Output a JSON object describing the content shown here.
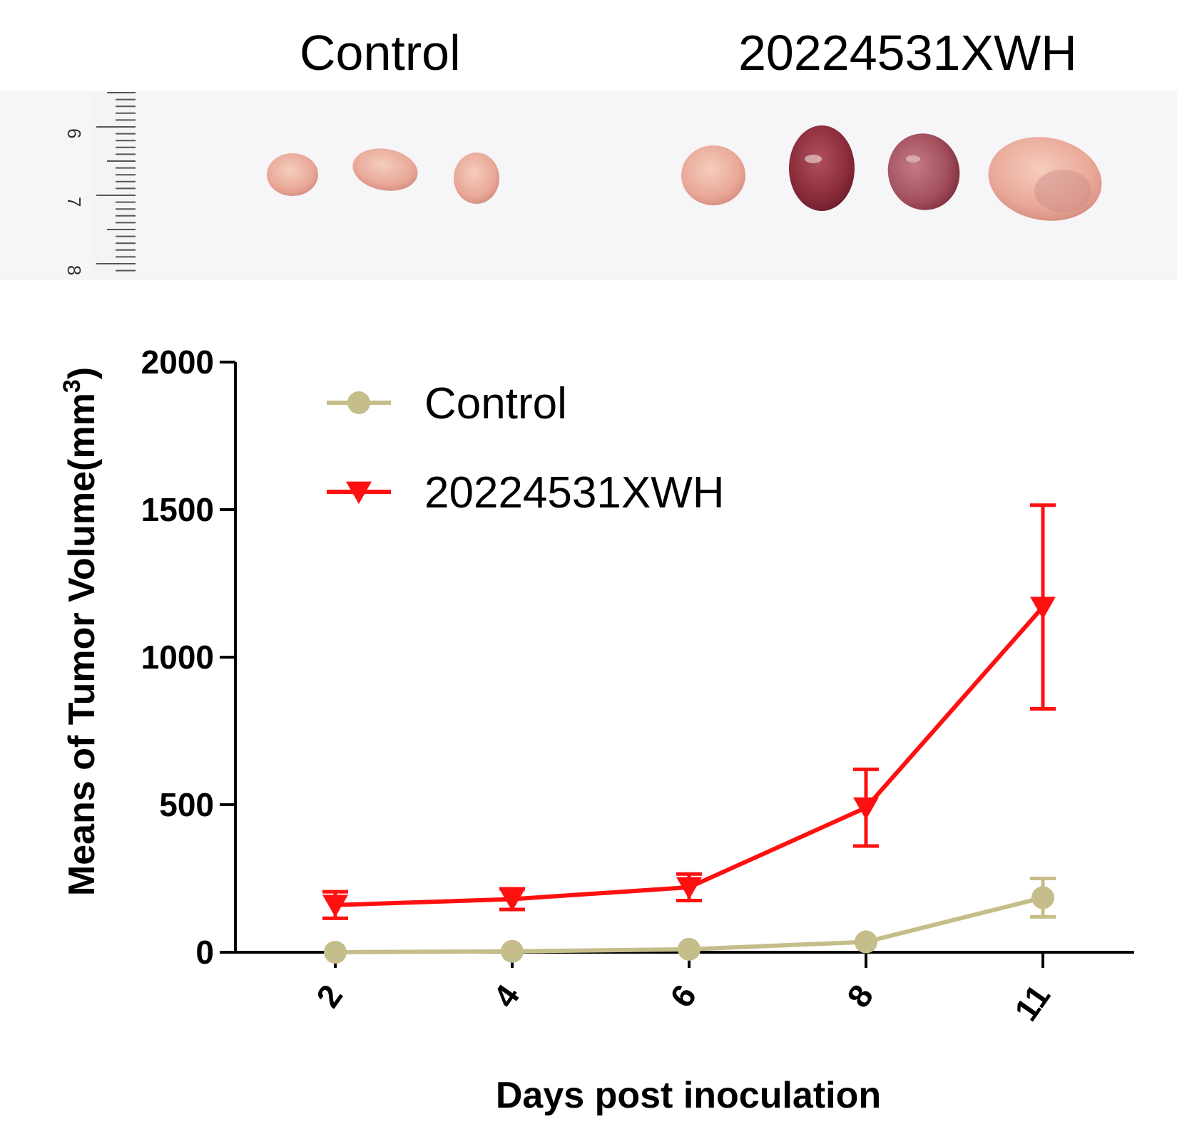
{
  "photo": {
    "group_labels": [
      "Control",
      "20224531XWH"
    ],
    "ruler_labels": [
      "6",
      "7",
      "8"
    ]
  },
  "chart_data": {
    "type": "line",
    "title": "",
    "xlabel": "Days post inoculation",
    "ylabel": "Means of Tumor Volume(mm",
    "ylabel_sup": "3",
    "ylabel_close": ")",
    "categories": [
      "2",
      "4",
      "6",
      "8",
      "11"
    ],
    "ylim": [
      0,
      2000
    ],
    "yticks": [
      "0",
      "500",
      "1000",
      "1500",
      "2000"
    ],
    "legend_position": "top-left",
    "series": [
      {
        "name": "Control",
        "color": "#c5bd8a",
        "marker": "circle",
        "values": [
          0,
          3,
          10,
          35,
          185
        ],
        "errors": [
          0,
          0,
          0,
          0,
          65
        ]
      },
      {
        "name": "20224531XWH",
        "color": "#ff1010",
        "marker": "triangle-down",
        "values": [
          160,
          180,
          220,
          490,
          1170
        ],
        "errors": [
          45,
          35,
          45,
          130,
          345
        ]
      }
    ]
  }
}
